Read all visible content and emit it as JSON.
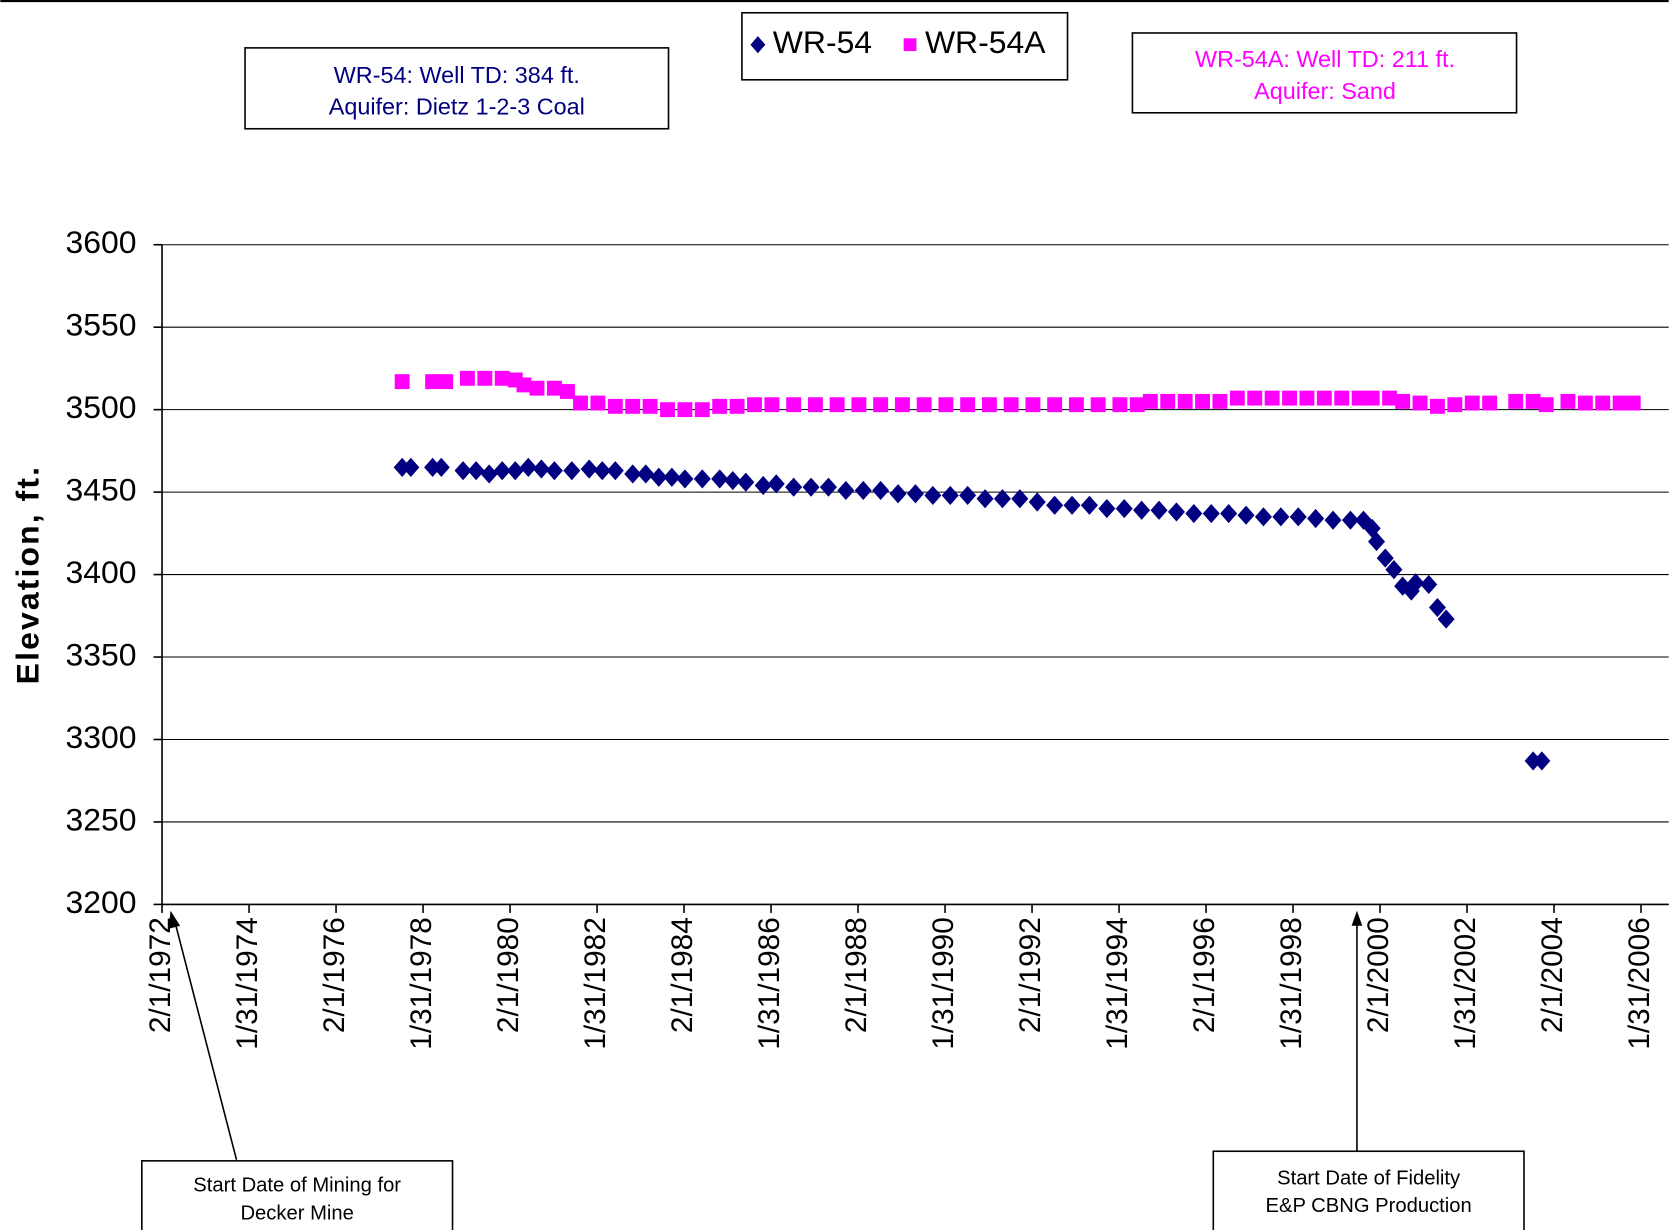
{
  "chart_data": {
    "type": "scatter",
    "y_label": "Elevation, ft.",
    "xlim": [
      1972.08,
      2006.08
    ],
    "ylim": [
      3200,
      3600
    ],
    "yticks": [
      3200,
      3250,
      3300,
      3350,
      3400,
      3450,
      3500,
      3550,
      3600
    ],
    "xticks": [
      {
        "value": 1972.08,
        "label": "2/1/1972"
      },
      {
        "value": 1974.08,
        "label": "1/31/1974"
      },
      {
        "value": 1976.08,
        "label": "2/1/1976"
      },
      {
        "value": 1978.08,
        "label": "1/31/1978"
      },
      {
        "value": 1980.08,
        "label": "2/1/1980"
      },
      {
        "value": 1982.08,
        "label": "1/31/1982"
      },
      {
        "value": 1984.08,
        "label": "2/1/1984"
      },
      {
        "value": 1986.08,
        "label": "1/31/1986"
      },
      {
        "value": 1988.08,
        "label": "2/1/1988"
      },
      {
        "value": 1990.08,
        "label": "1/31/1990"
      },
      {
        "value": 1992.08,
        "label": "2/1/1992"
      },
      {
        "value": 1994.08,
        "label": "1/31/1994"
      },
      {
        "value": 1996.08,
        "label": "2/1/1996"
      },
      {
        "value": 1998.08,
        "label": "1/31/1998"
      },
      {
        "value": 2000.08,
        "label": "2/1/2000"
      },
      {
        "value": 2002.08,
        "label": "1/31/2002"
      },
      {
        "value": 2004.08,
        "label": "2/1/2004"
      },
      {
        "value": 2006.08,
        "label": "1/31/2006"
      }
    ],
    "grid": true,
    "series": [
      {
        "name": "WR-54",
        "color": "#000080",
        "marker": "diamond",
        "x": [
          1977.6,
          1977.8,
          1978.3,
          1978.5,
          1979.0,
          1979.3,
          1979.6,
          1979.9,
          1980.2,
          1980.5,
          1980.8,
          1981.1,
          1981.5,
          1981.9,
          1982.2,
          1982.5,
          1982.9,
          1983.2,
          1983.5,
          1983.8,
          1984.1,
          1984.5,
          1984.9,
          1985.2,
          1985.5,
          1985.9,
          1986.2,
          1986.6,
          1987.0,
          1987.4,
          1987.8,
          1988.2,
          1988.6,
          1989.0,
          1989.4,
          1989.8,
          1990.2,
          1990.6,
          1991.0,
          1991.4,
          1991.8,
          1992.2,
          1992.6,
          1993.0,
          1993.4,
          1993.8,
          1994.2,
          1994.6,
          1995.0,
          1995.4,
          1995.8,
          1996.2,
          1996.6,
          1997.0,
          1997.4,
          1997.8,
          1998.2,
          1998.6,
          1999.0,
          1999.4,
          1999.7,
          1999.9,
          2000.0,
          2000.2,
          2000.4,
          2000.6,
          2000.8,
          2000.9,
          2001.2,
          2001.4,
          2001.6,
          2003.6,
          2003.8
        ],
        "values": [
          3465,
          3465,
          3465,
          3465,
          3463,
          3463,
          3461,
          3463,
          3463,
          3465,
          3464,
          3463,
          3463,
          3464,
          3463,
          3463,
          3461,
          3461,
          3459,
          3459,
          3458,
          3458,
          3458,
          3457,
          3456,
          3454,
          3455,
          3453,
          3453,
          3453,
          3451,
          3451,
          3451,
          3449,
          3449,
          3448,
          3448,
          3448,
          3446,
          3446,
          3446,
          3444,
          3442,
          3442,
          3442,
          3440,
          3440,
          3439,
          3439,
          3438,
          3437,
          3437,
          3437,
          3436,
          3435,
          3435,
          3435,
          3434,
          3433,
          3433,
          3433,
          3428,
          3420,
          3410,
          3403,
          3393,
          3390,
          3395,
          3394,
          3380,
          3373,
          3287,
          3287
        ]
      },
      {
        "name": "WR-54A",
        "color": "#ff00ff",
        "marker": "square",
        "x": [
          1977.6,
          1978.3,
          1978.6,
          1979.1,
          1979.5,
          1979.9,
          1980.2,
          1980.4,
          1980.7,
          1981.1,
          1981.4,
          1981.7,
          1982.1,
          1982.5,
          1982.9,
          1983.3,
          1983.7,
          1984.1,
          1984.5,
          1984.9,
          1985.3,
          1985.7,
          1986.1,
          1986.6,
          1987.1,
          1987.6,
          1988.1,
          1988.6,
          1989.1,
          1989.6,
          1990.1,
          1990.6,
          1991.1,
          1991.6,
          1992.1,
          1992.6,
          1993.1,
          1993.6,
          1994.1,
          1994.5,
          1994.8,
          1995.2,
          1995.6,
          1996.0,
          1996.4,
          1996.8,
          1997.2,
          1997.6,
          1998.0,
          1998.4,
          1998.8,
          1999.2,
          1999.6,
          1999.9,
          2000.3,
          2000.6,
          2001.0,
          2001.4,
          2001.8,
          2002.2,
          2002.6,
          2003.2,
          2003.6,
          2003.9,
          2004.4,
          2004.8,
          2005.2,
          2005.6,
          2005.9
        ],
        "values": [
          3517,
          3517,
          3517,
          3519,
          3519,
          3519,
          3518,
          3515,
          3513,
          3513,
          3511,
          3504,
          3504,
          3502,
          3502,
          3502,
          3500,
          3500,
          3500,
          3502,
          3502,
          3503,
          3503,
          3503,
          3503,
          3503,
          3503,
          3503,
          3503,
          3503,
          3503,
          3503,
          3503,
          3503,
          3503,
          3503,
          3503,
          3503,
          3503,
          3503,
          3505,
          3505,
          3505,
          3505,
          3505,
          3507,
          3507,
          3507,
          3507,
          3507,
          3507,
          3507,
          3507,
          3507,
          3507,
          3505,
          3504,
          3502,
          3503,
          3504,
          3504,
          3505,
          3505,
          3503,
          3505,
          3504,
          3504,
          3504,
          3504
        ]
      }
    ],
    "annotations": [
      {
        "lines": [
          "WR-54:  Well TD: 384 ft.",
          "Aquifer: Dietz 1-2-3 Coal"
        ],
        "color": "#000080"
      },
      {
        "lines": [
          "WR-54A: Well TD: 211 ft.",
          "Aquifer: Sand"
        ],
        "color": "#ff00ff"
      },
      {
        "lines": [
          "Start Date of Mining for",
          "Decker Mine"
        ],
        "color": "#000000"
      },
      {
        "lines": [
          "Start Date of Fidelity",
          "E&P CBNG Production"
        ],
        "color": "#000000"
      }
    ]
  }
}
